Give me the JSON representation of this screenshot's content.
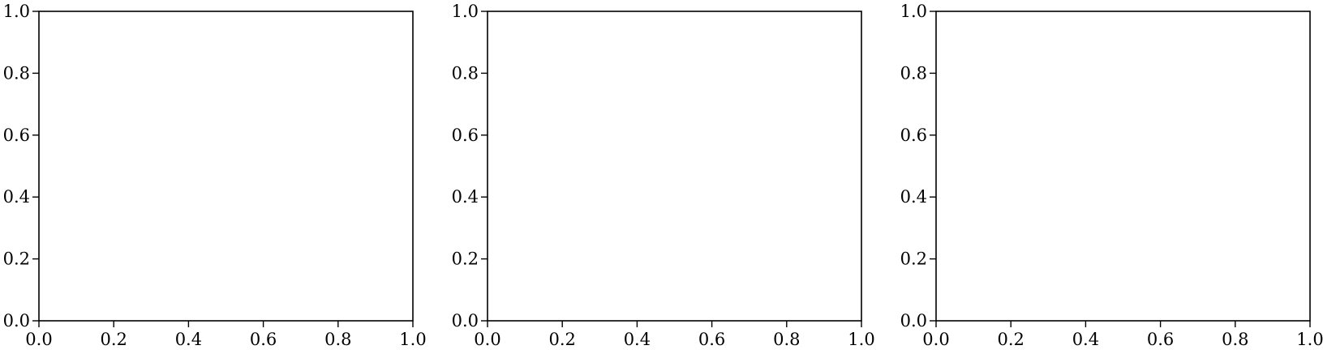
{
  "chart_data": [
    {
      "type": "line",
      "series": [],
      "xlim": [
        0,
        1
      ],
      "ylim": [
        0,
        1
      ],
      "x_ticks": [
        "0.0",
        "0.2",
        "0.4",
        "0.6",
        "0.8",
        "1.0"
      ],
      "y_ticks": [
        "0.0",
        "0.2",
        "0.4",
        "0.6",
        "0.8",
        "1.0"
      ],
      "grid": false
    },
    {
      "type": "line",
      "series": [],
      "xlim": [
        0,
        1
      ],
      "ylim": [
        0,
        1
      ],
      "x_ticks": [
        "0.0",
        "0.2",
        "0.4",
        "0.6",
        "0.8",
        "1.0"
      ],
      "y_ticks": [
        "0.0",
        "0.2",
        "0.4",
        "0.6",
        "0.8",
        "1.0"
      ],
      "grid": false
    },
    {
      "type": "line",
      "series": [],
      "xlim": [
        0,
        1
      ],
      "ylim": [
        0,
        1
      ],
      "x_ticks": [
        "0.0",
        "0.2",
        "0.4",
        "0.6",
        "0.8",
        "1.0"
      ],
      "y_ticks": [
        "0.0",
        "0.2",
        "0.4",
        "0.6",
        "0.8",
        "1.0"
      ],
      "grid": false
    }
  ],
  "colors": {
    "axes": "#000000",
    "background": "#ffffff"
  }
}
